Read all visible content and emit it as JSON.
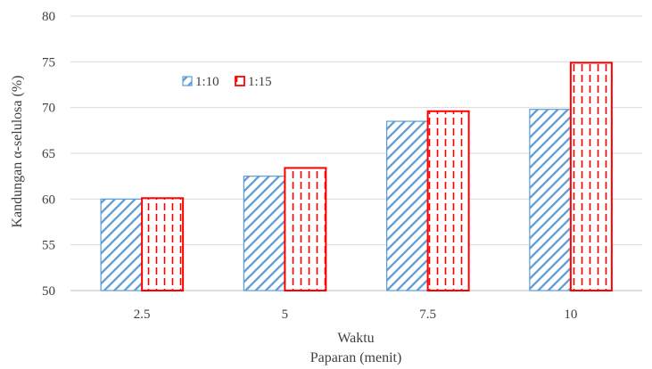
{
  "chart_data": {
    "type": "bar",
    "categories": [
      "2.5",
      "5",
      "7.5",
      "10"
    ],
    "series": [
      {
        "name": "1:10",
        "values": [
          60.0,
          62.5,
          68.5,
          69.8
        ],
        "color": "#5b9bd5",
        "pattern": "diagonal-hatch"
      },
      {
        "name": "1:15",
        "values": [
          60.1,
          63.4,
          69.6,
          74.9
        ],
        "color": "#ff0000",
        "pattern": "vertical-dashes"
      }
    ],
    "ylabel": "Kandungan α-selulosa (%)",
    "xlabel_lines": [
      "Waktu",
      "Paparan (menit)"
    ],
    "ylim": [
      50,
      80
    ],
    "yticks": [
      50,
      55,
      60,
      65,
      70,
      75,
      80
    ],
    "grid": true,
    "legend_position": "top-left-inside"
  }
}
